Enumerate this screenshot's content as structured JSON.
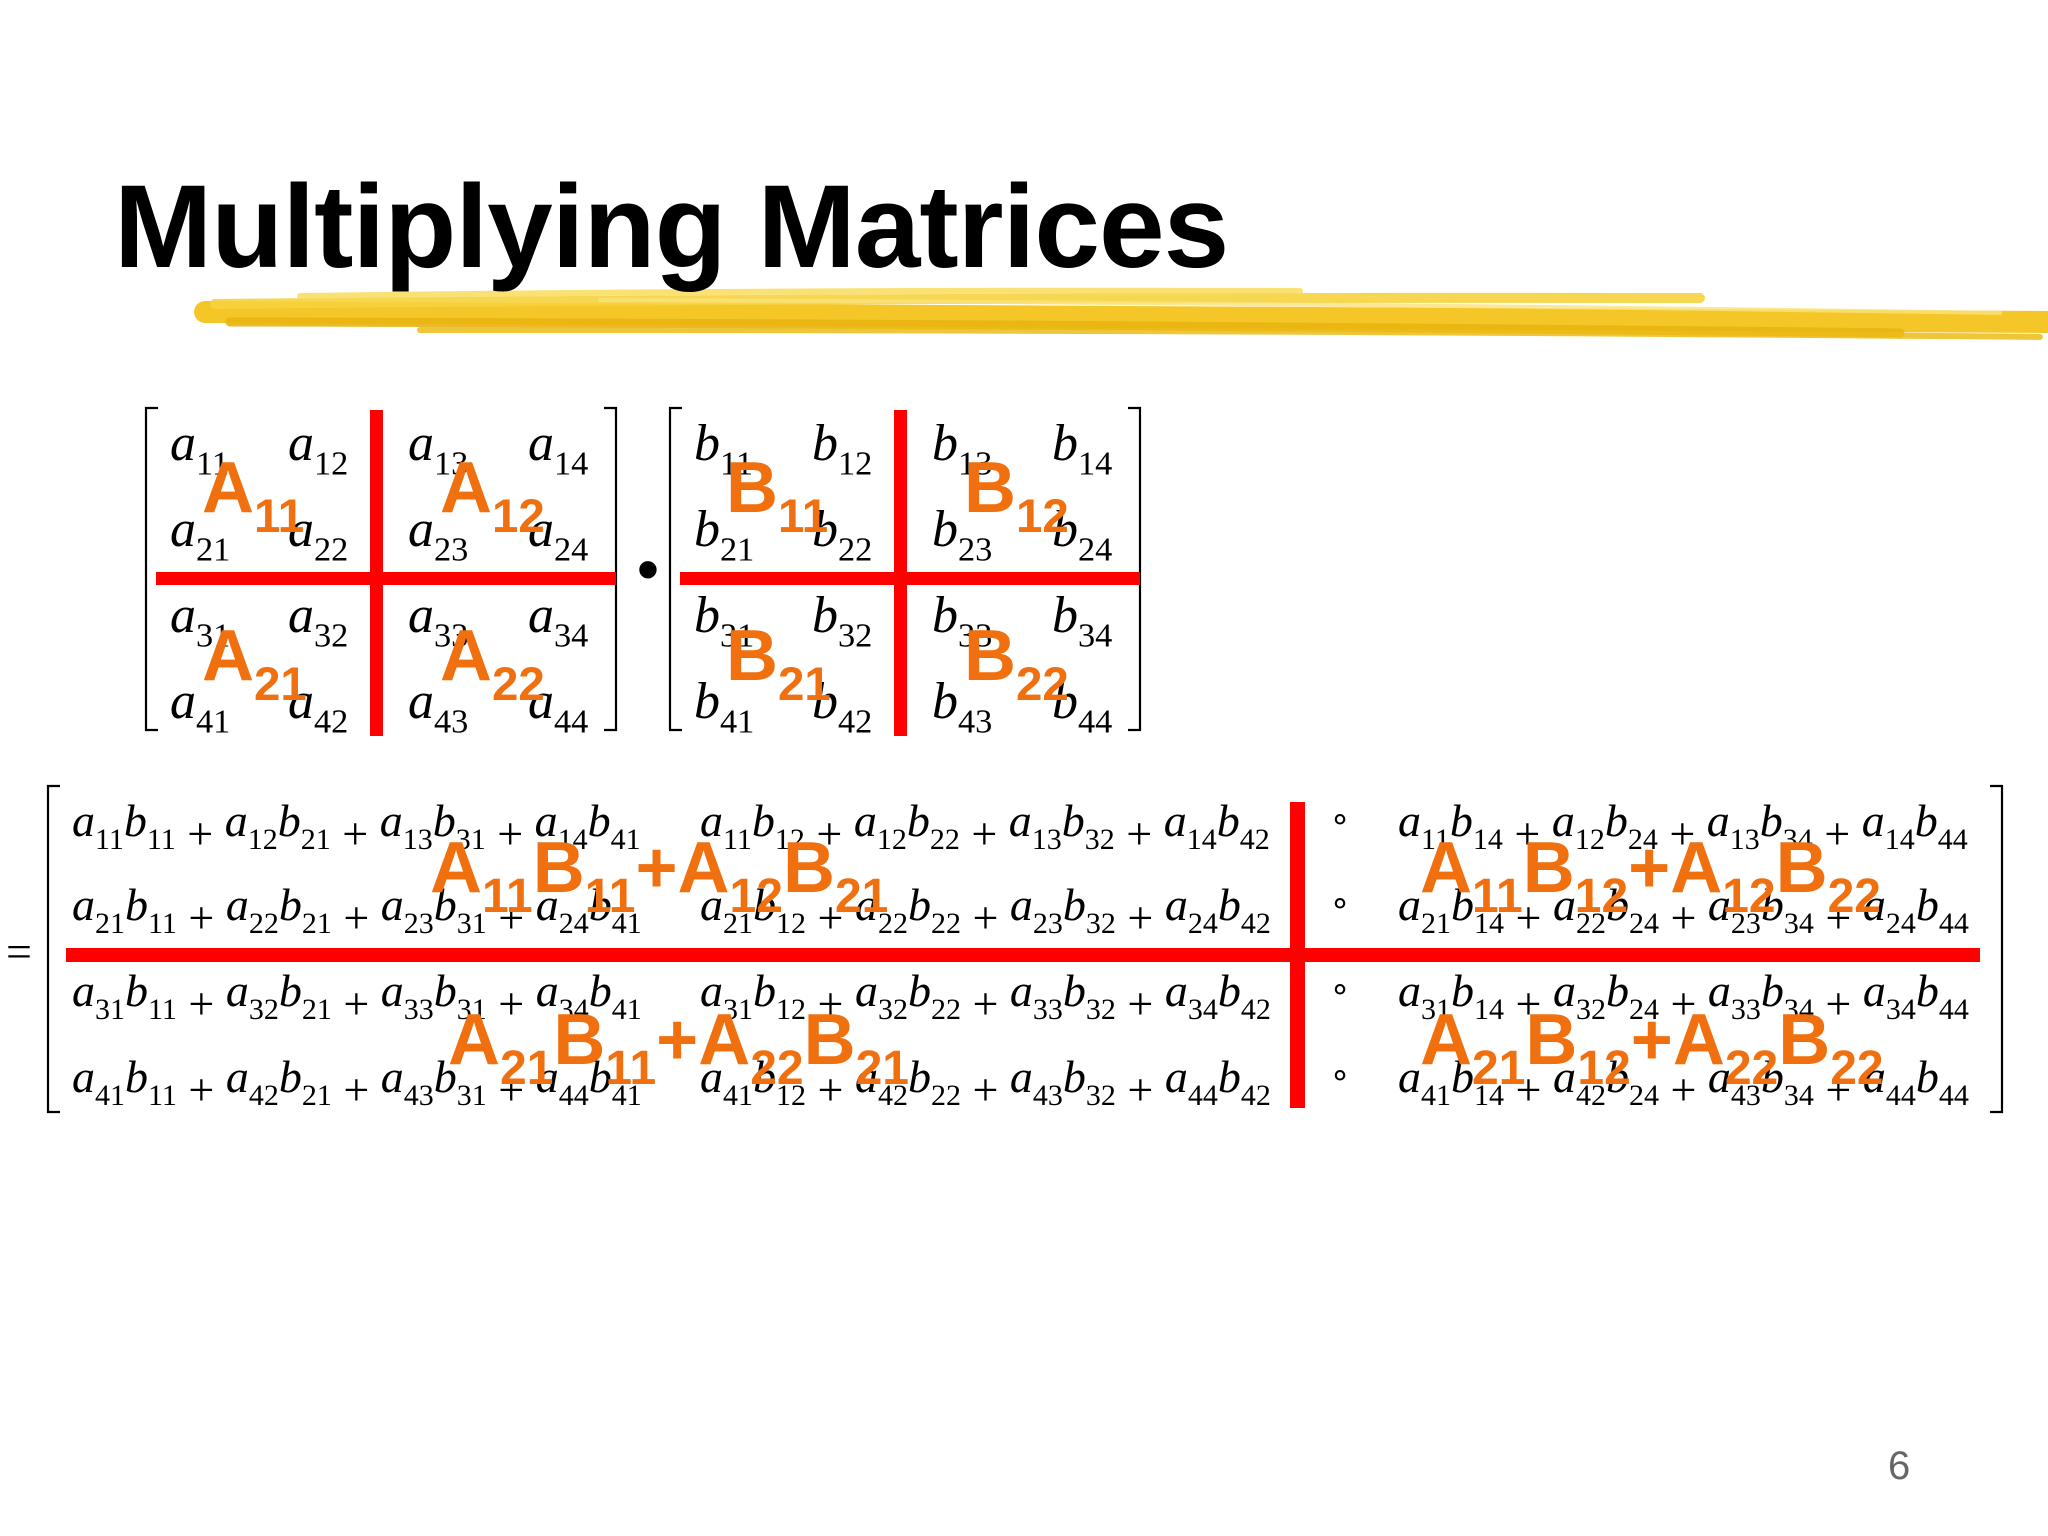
{
  "slide": {
    "title": "Multiplying Matrices",
    "page_number": "6",
    "colors": {
      "divider": "#ff0000",
      "block_label": "#f07010",
      "underline_brush": "#f2c21a",
      "text": "#000000"
    }
  },
  "matrix_a": {
    "rows": [
      [
        [
          "a",
          "11"
        ],
        [
          "a",
          "12"
        ],
        [
          "a",
          "13"
        ],
        [
          "a",
          "14"
        ]
      ],
      [
        [
          "a",
          "21"
        ],
        [
          "a",
          "22"
        ],
        [
          "a",
          "23"
        ],
        [
          "a",
          "24"
        ]
      ],
      [
        [
          "a",
          "31"
        ],
        [
          "a",
          "32"
        ],
        [
          "a",
          "33"
        ],
        [
          "a",
          "34"
        ]
      ],
      [
        [
          "a",
          "41"
        ],
        [
          "a",
          "42"
        ],
        [
          "a",
          "43"
        ],
        [
          "a",
          "44"
        ]
      ]
    ],
    "block_labels": [
      [
        "A",
        "11"
      ],
      [
        "A",
        "12"
      ],
      [
        "A",
        "21"
      ],
      [
        "A",
        "22"
      ]
    ]
  },
  "operator_dot": "•",
  "matrix_b": {
    "rows": [
      [
        [
          "b",
          "11"
        ],
        [
          "b",
          "12"
        ],
        [
          "b",
          "13"
        ],
        [
          "b",
          "14"
        ]
      ],
      [
        [
          "b",
          "21"
        ],
        [
          "b",
          "22"
        ],
        [
          "b",
          "23"
        ],
        [
          "b",
          "24"
        ]
      ],
      [
        [
          "b",
          "31"
        ],
        [
          "b",
          "32"
        ],
        [
          "b",
          "33"
        ],
        [
          "b",
          "34"
        ]
      ],
      [
        [
          "b",
          "41"
        ],
        [
          "b",
          "42"
        ],
        [
          "b",
          "43"
        ],
        [
          "b",
          "44"
        ]
      ]
    ],
    "block_labels": [
      [
        "B",
        "11"
      ],
      [
        "B",
        "12"
      ],
      [
        "B",
        "21"
      ],
      [
        "B",
        "22"
      ]
    ]
  },
  "equals": "=",
  "product": {
    "column_ellipsis": "∘",
    "rows": [
      {
        "col1": [
          [
            "a",
            "11"
          ],
          [
            "b",
            "11"
          ],
          [
            "a",
            "12"
          ],
          [
            "b",
            "21"
          ],
          [
            "a",
            "13"
          ],
          [
            "b",
            "31"
          ],
          [
            "a",
            "14"
          ],
          [
            "b",
            "41"
          ]
        ],
        "col2": [
          [
            "a",
            "11"
          ],
          [
            "b",
            "12"
          ],
          [
            "a",
            "12"
          ],
          [
            "b",
            "22"
          ],
          [
            "a",
            "13"
          ],
          [
            "b",
            "32"
          ],
          [
            "a",
            "14"
          ],
          [
            "b",
            "42"
          ]
        ],
        "col4": [
          [
            "a",
            "11"
          ],
          [
            "b",
            "14"
          ],
          [
            "a",
            "12"
          ],
          [
            "b",
            "24"
          ],
          [
            "a",
            "13"
          ],
          [
            "b",
            "34"
          ],
          [
            "a",
            "14"
          ],
          [
            "b",
            "44"
          ]
        ]
      },
      {
        "col1": [
          [
            "a",
            "21"
          ],
          [
            "b",
            "11"
          ],
          [
            "a",
            "22"
          ],
          [
            "b",
            "21"
          ],
          [
            "a",
            "23"
          ],
          [
            "b",
            "31"
          ],
          [
            "a",
            "24"
          ],
          [
            "b",
            "41"
          ]
        ],
        "col2": [
          [
            "a",
            "21"
          ],
          [
            "b",
            "12"
          ],
          [
            "a",
            "22"
          ],
          [
            "b",
            "22"
          ],
          [
            "a",
            "23"
          ],
          [
            "b",
            "32"
          ],
          [
            "a",
            "24"
          ],
          [
            "b",
            "42"
          ]
        ],
        "col4": [
          [
            "a",
            "21"
          ],
          [
            "b",
            "14"
          ],
          [
            "a",
            "22"
          ],
          [
            "b",
            "24"
          ],
          [
            "a",
            "23"
          ],
          [
            "b",
            "34"
          ],
          [
            "a",
            "24"
          ],
          [
            "b",
            "44"
          ]
        ]
      },
      {
        "col1": [
          [
            "a",
            "31"
          ],
          [
            "b",
            "11"
          ],
          [
            "a",
            "32"
          ],
          [
            "b",
            "21"
          ],
          [
            "a",
            "33"
          ],
          [
            "b",
            "31"
          ],
          [
            "a",
            "34"
          ],
          [
            "b",
            "41"
          ]
        ],
        "col2": [
          [
            "a",
            "31"
          ],
          [
            "b",
            "12"
          ],
          [
            "a",
            "32"
          ],
          [
            "b",
            "22"
          ],
          [
            "a",
            "33"
          ],
          [
            "b",
            "32"
          ],
          [
            "a",
            "34"
          ],
          [
            "b",
            "42"
          ]
        ],
        "col4": [
          [
            "a",
            "31"
          ],
          [
            "b",
            "14"
          ],
          [
            "a",
            "32"
          ],
          [
            "b",
            "24"
          ],
          [
            "a",
            "33"
          ],
          [
            "b",
            "34"
          ],
          [
            "a",
            "34"
          ],
          [
            "b",
            "44"
          ]
        ]
      },
      {
        "col1": [
          [
            "a",
            "41"
          ],
          [
            "b",
            "11"
          ],
          [
            "a",
            "42"
          ],
          [
            "b",
            "21"
          ],
          [
            "a",
            "43"
          ],
          [
            "b",
            "31"
          ],
          [
            "a",
            "44"
          ],
          [
            "b",
            "41"
          ]
        ],
        "col2": [
          [
            "a",
            "41"
          ],
          [
            "b",
            "12"
          ],
          [
            "a",
            "42"
          ],
          [
            "b",
            "22"
          ],
          [
            "a",
            "43"
          ],
          [
            "b",
            "32"
          ],
          [
            "a",
            "44"
          ],
          [
            "b",
            "42"
          ]
        ],
        "col4": [
          [
            "a",
            "41"
          ],
          [
            "b",
            "14"
          ],
          [
            "a",
            "42"
          ],
          [
            "b",
            "24"
          ],
          [
            "a",
            "43"
          ],
          [
            "b",
            "34"
          ],
          [
            "a",
            "44"
          ],
          [
            "b",
            "44"
          ]
        ]
      }
    ],
    "block_labels": [
      [
        [
          "A",
          "11"
        ],
        [
          "B",
          "11"
        ],
        [
          "+A",
          "12"
        ],
        [
          "B",
          "21"
        ]
      ],
      [
        [
          "A",
          "11"
        ],
        [
          "B",
          "12"
        ],
        [
          "+A",
          "12"
        ],
        [
          "B",
          "22"
        ]
      ],
      [
        [
          "A",
          "21"
        ],
        [
          "B",
          "11"
        ],
        [
          "+A",
          "22"
        ],
        [
          "B",
          "21"
        ]
      ],
      [
        [
          "A",
          "21"
        ],
        [
          "B",
          "12"
        ],
        [
          "+A",
          "22"
        ],
        [
          "B",
          "22"
        ]
      ]
    ]
  }
}
